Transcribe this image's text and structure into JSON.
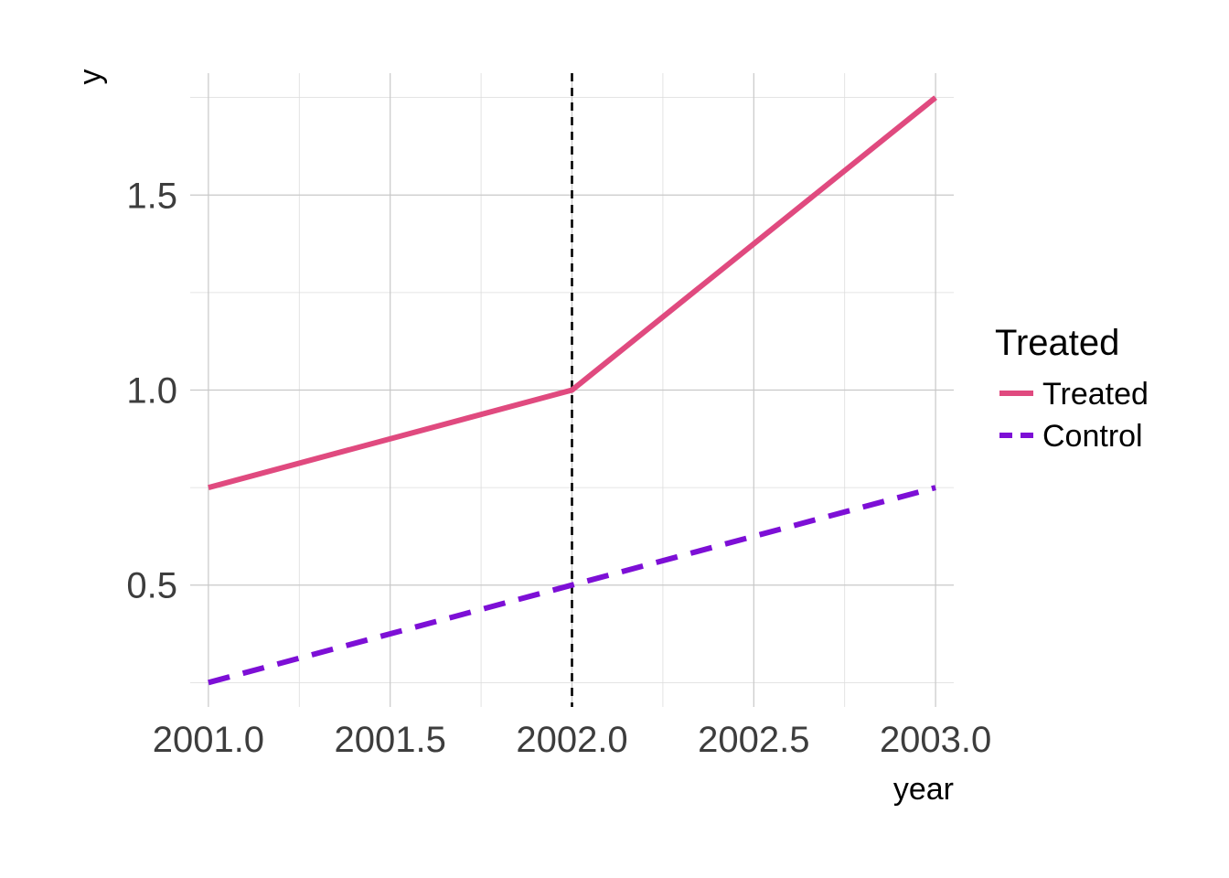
{
  "chart_data": {
    "type": "line",
    "title": "",
    "xlabel": "year",
    "ylabel": "y",
    "xlim": [
      2000.95,
      2003.05
    ],
    "ylim": [
      0.1875,
      1.8125
    ],
    "x_ticks": [
      2001.0,
      2001.5,
      2002.0,
      2002.5,
      2003.0
    ],
    "x_tick_labels": [
      "2001.0",
      "2001.5",
      "2002.0",
      "2002.5",
      "2003.0"
    ],
    "y_ticks": [
      0.5,
      1.0,
      1.5
    ],
    "y_tick_labels": [
      "0.5",
      "1.0",
      "1.5"
    ],
    "x_minor": [
      2001.25,
      2001.75,
      2002.25,
      2002.75
    ],
    "y_minor": [
      0.25,
      0.75,
      1.25,
      1.75
    ],
    "grid": true,
    "vline": {
      "x": 2002.0,
      "style": "dashed",
      "color": "#000000"
    },
    "legend": {
      "title": "Treated",
      "position": "right",
      "entries": [
        "Treated",
        "Control"
      ]
    },
    "series": [
      {
        "name": "Treated",
        "color": "#e04a7f",
        "style": "solid",
        "x": [
          2001,
          2002,
          2003
        ],
        "y": [
          0.75,
          1.0,
          1.75
        ]
      },
      {
        "name": "Control",
        "color": "#7d0fd6",
        "style": "dashed",
        "x": [
          2001,
          2002,
          2003
        ],
        "y": [
          0.25,
          0.5,
          0.75
        ]
      }
    ]
  }
}
